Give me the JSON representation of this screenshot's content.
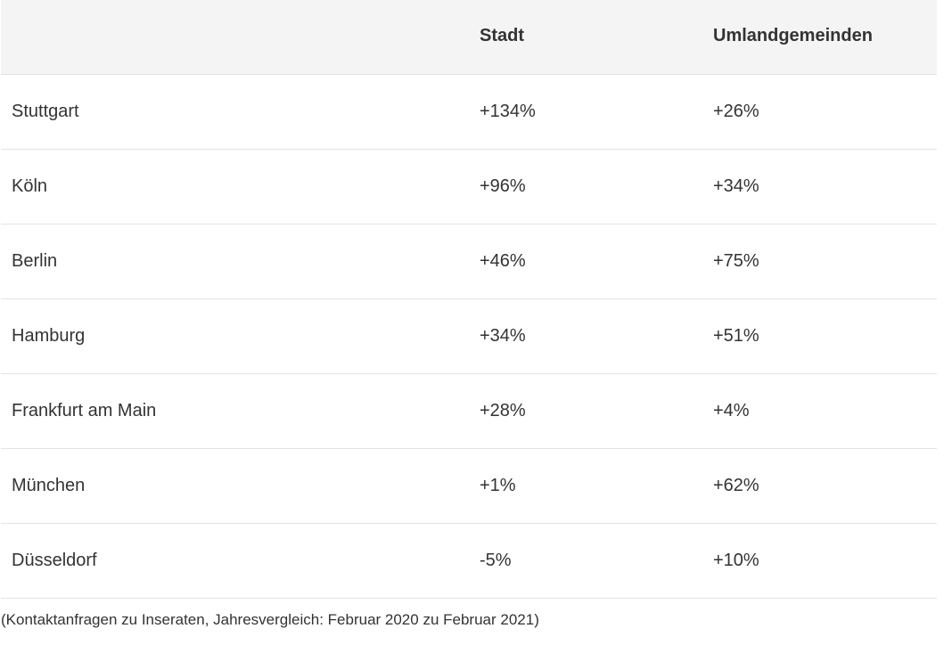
{
  "table": {
    "headers": [
      "",
      "Stadt",
      "Umlandgemeinden"
    ],
    "rows": [
      {
        "city": "Stuttgart",
        "stadt": "+134%",
        "umland": "+26%"
      },
      {
        "city": "Köln",
        "stadt": "+96%",
        "umland": "+34%"
      },
      {
        "city": "Berlin",
        "stadt": "+46%",
        "umland": "+75%"
      },
      {
        "city": "Hamburg",
        "stadt": "+34%",
        "umland": "+51%"
      },
      {
        "city": "Frankfurt am Main",
        "stadt": "+28%",
        "umland": "+4%"
      },
      {
        "city": "München",
        "stadt": "+1%",
        "umland": "+62%"
      },
      {
        "city": "Düsseldorf",
        "stadt": "-5%",
        "umland": "+10%"
      }
    ]
  },
  "footnote": "(Kontaktanfragen zu Inseraten, Jahresvergleich: Februar 2020 zu Februar 2021)"
}
